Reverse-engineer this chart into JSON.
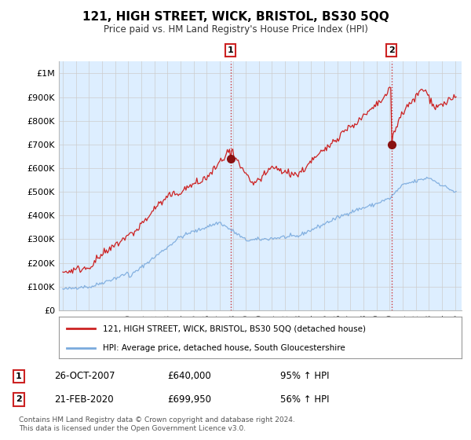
{
  "title": "121, HIGH STREET, WICK, BRISTOL, BS30 5QQ",
  "subtitle": "Price paid vs. HM Land Registry's House Price Index (HPI)",
  "ylabel_ticks": [
    "£0",
    "£100K",
    "£200K",
    "£300K",
    "£400K",
    "£500K",
    "£600K",
    "£700K",
    "£800K",
    "£900K",
    "£1M"
  ],
  "ytick_values": [
    0,
    100000,
    200000,
    300000,
    400000,
    500000,
    600000,
    700000,
    800000,
    900000,
    1000000
  ],
  "ylim": [
    0,
    1050000
  ],
  "xlim_start": 1994.7,
  "xlim_end": 2025.5,
  "sale1_year": 2007.82,
  "sale1_price": 640000,
  "sale1_label": "1",
  "sale1_date": "26-OCT-2007",
  "sale1_hpi": "95% ↑ HPI",
  "sale2_year": 2020.13,
  "sale2_price": 699950,
  "sale2_label": "2",
  "sale2_date": "21-FEB-2020",
  "sale2_hpi": "56% ↑ HPI",
  "legend_line1": "121, HIGH STREET, WICK, BRISTOL, BS30 5QQ (detached house)",
  "legend_line2": "HPI: Average price, detached house, South Gloucestershire",
  "table_row1": [
    "1",
    "26-OCT-2007",
    "£640,000",
    "95% ↑ HPI"
  ],
  "table_row2": [
    "2",
    "21-FEB-2020",
    "£699,950",
    "56% ↑ HPI"
  ],
  "footnote1": "Contains HM Land Registry data © Crown copyright and database right 2024.",
  "footnote2": "This data is licensed under the Open Government Licence v3.0.",
  "red_color": "#cc2222",
  "blue_color": "#7aaadd",
  "plot_bg_color": "#ddeeff",
  "background_color": "#ffffff",
  "grid_color": "#cccccc"
}
